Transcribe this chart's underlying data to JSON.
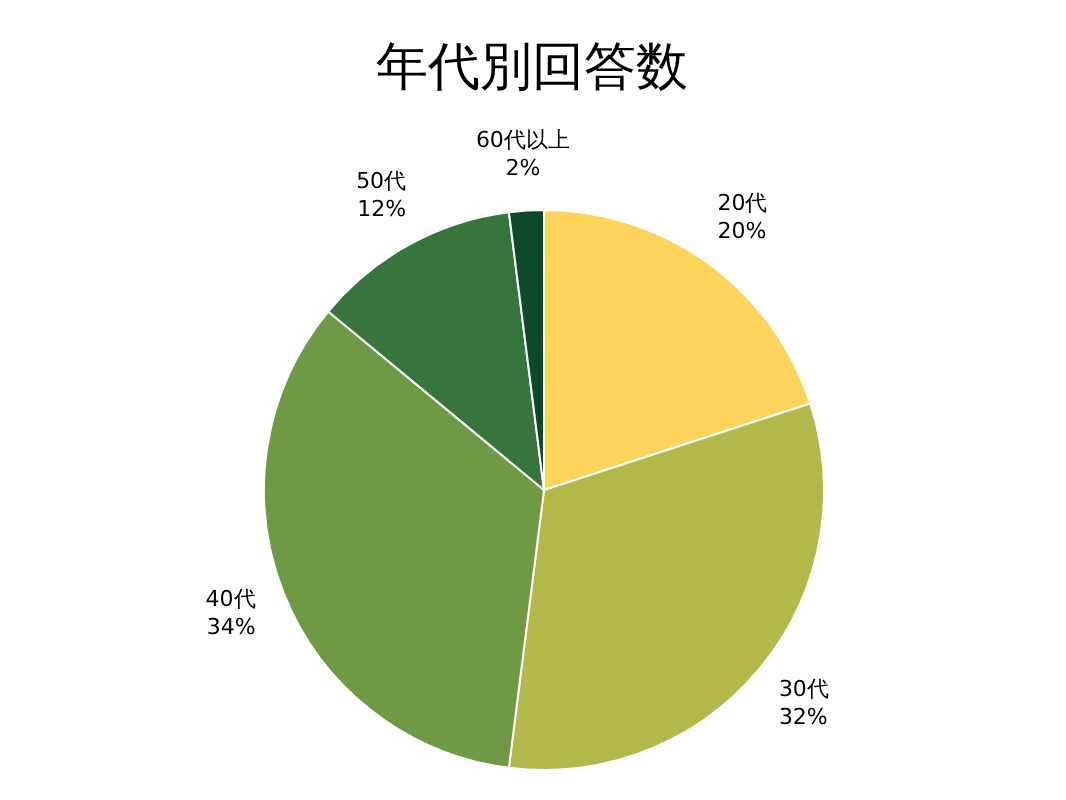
{
  "chart_data": {
    "type": "pie",
    "title": "年代別回答数",
    "categories": [
      "20代",
      "30代",
      "40代",
      "50代",
      "60代以上"
    ],
    "values": [
      20,
      32,
      34,
      12,
      2
    ],
    "colors": [
      "#fdd35c",
      "#b3b84a",
      "#6f9a45",
      "#38743d",
      "#0c4a2b"
    ],
    "value_labels": [
      "20%",
      "32%",
      "34%",
      "12%",
      "2%"
    ]
  }
}
